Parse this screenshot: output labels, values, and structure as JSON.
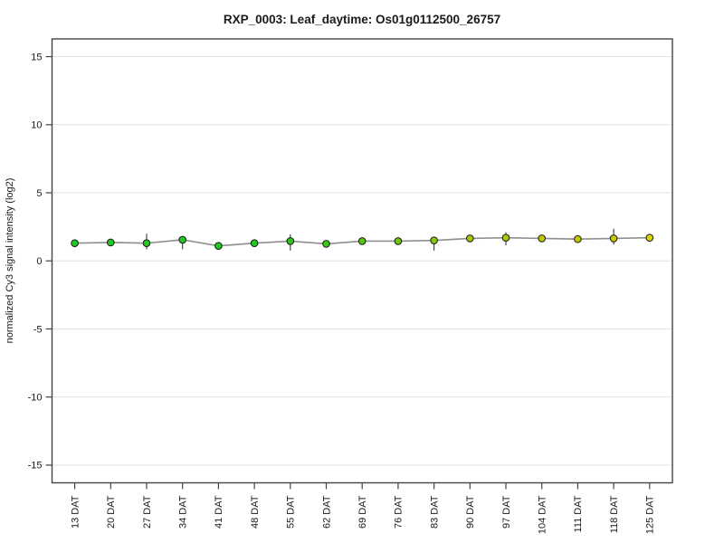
{
  "page": {
    "background": "#ffffff"
  },
  "chart_data": {
    "type": "line",
    "title": "RXP_0003: Leaf_daytime: Os01g0112500_26757",
    "ylabel": "normalized Cy3 signal intensity (log2)",
    "xlabel": "",
    "categories": [
      "13 DAT",
      "20 DAT",
      "27 DAT",
      "34 DAT",
      "41 DAT",
      "48 DAT",
      "55 DAT",
      "62 DAT",
      "69 DAT",
      "76 DAT",
      "83 DAT",
      "90 DAT",
      "97 DAT",
      "104 DAT",
      "111 DAT",
      "118 DAT",
      "125 DAT"
    ],
    "values": [
      1.3,
      1.35,
      1.3,
      1.55,
      1.1,
      1.3,
      1.45,
      1.25,
      1.45,
      1.45,
      1.5,
      1.65,
      1.7,
      1.65,
      1.6,
      1.65,
      1.7
    ],
    "error_low": [
      1.0,
      null,
      0.85,
      0.85,
      null,
      null,
      0.75,
      null,
      null,
      null,
      0.75,
      null,
      1.15,
      null,
      null,
      1.2,
      null
    ],
    "error_high": [
      null,
      null,
      2.0,
      null,
      null,
      null,
      1.95,
      null,
      null,
      null,
      null,
      null,
      2.1,
      null,
      null,
      2.35,
      null
    ],
    "point_colors": [
      "#22c822",
      "#22c822",
      "#22c822",
      "#22c822",
      "#22c822",
      "#22c822",
      "#2cc81e",
      "#3cc816",
      "#50c80e",
      "#6ec806",
      "#8cc800",
      "#a0c800",
      "#b0c800",
      "#bcc800",
      "#c4c800",
      "#ccc800",
      "#d8d800"
    ],
    "ylim": [
      -16.3,
      16.3
    ],
    "yticks": [
      -15,
      -10,
      -5,
      0,
      5,
      10,
      15
    ],
    "grid": true,
    "legend": false,
    "colors": {
      "line": "#909090",
      "axis": "#444444",
      "grid": "#e2e2e2",
      "marker_stroke": "#1a1a1a",
      "error_bar": "#3a3a3a",
      "text": "#1a1a1a"
    }
  }
}
